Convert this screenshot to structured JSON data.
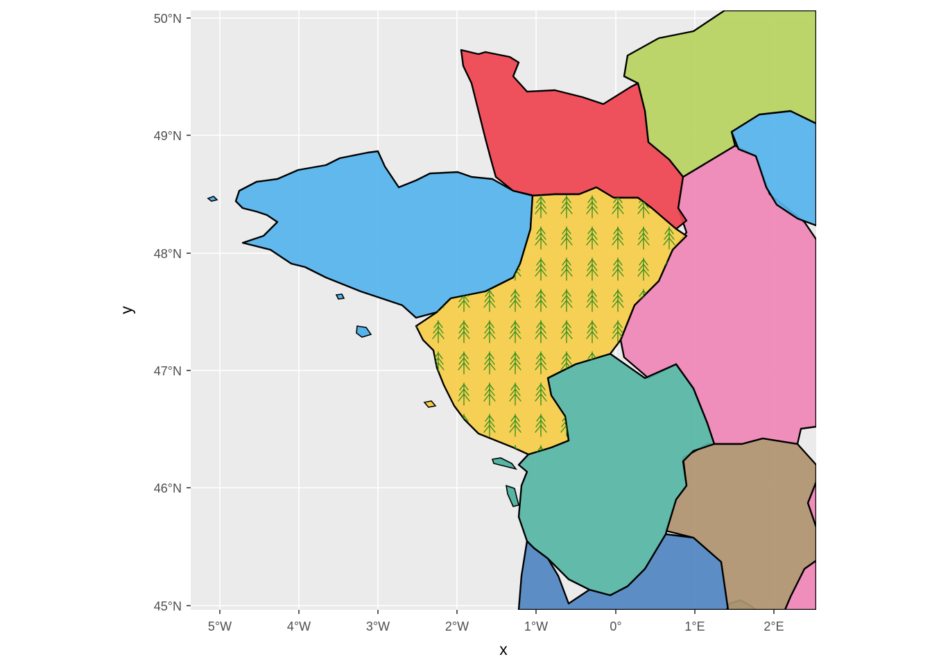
{
  "map": {
    "x_axis_title": "x",
    "y_axis_title": "y",
    "x_ticks": [
      "5°W",
      "4°W",
      "3°W",
      "2°W",
      "1°W",
      "0°",
      "1°E",
      "2°E"
    ],
    "y_ticks": [
      "45°N",
      "46°N",
      "47°N",
      "48°N",
      "49°N",
      "50°N"
    ],
    "extent": {
      "lon": [
        -5.35,
        2.5
      ],
      "lat": [
        45.0,
        50.05
      ]
    },
    "colors": {
      "panel_background": "#ebebeb",
      "gridline": "#ffffff",
      "sea_islets": "#ffffff",
      "pattern_tree": "#2e8b1e"
    },
    "regions": [
      {
        "id": "bretagne",
        "fill": "#55b3ec",
        "pattern": "none"
      },
      {
        "id": "normandie",
        "fill": "#ee434f",
        "pattern": "none"
      },
      {
        "id": "hauts-de-france",
        "fill": "#b7d35e",
        "pattern": "none"
      },
      {
        "id": "ile-de-france",
        "fill": "#55b3ec",
        "pattern": "none"
      },
      {
        "id": "centre-val-de-loire",
        "fill": "#ef84b6",
        "pattern": "none"
      },
      {
        "id": "pays-de-la-loire",
        "fill": "#f6cd47",
        "pattern": "tree-icon"
      },
      {
        "id": "nouvelle-aquitaine-north",
        "fill": "#56b5a4",
        "pattern": "none"
      },
      {
        "id": "nouvelle-aquitaine-south",
        "fill": "#4f86c1",
        "pattern": "none"
      },
      {
        "id": "limousin",
        "fill": "#b09370",
        "pattern": "none"
      },
      {
        "id": "auvergne",
        "fill": "#58af72",
        "pattern": "none"
      }
    ]
  }
}
